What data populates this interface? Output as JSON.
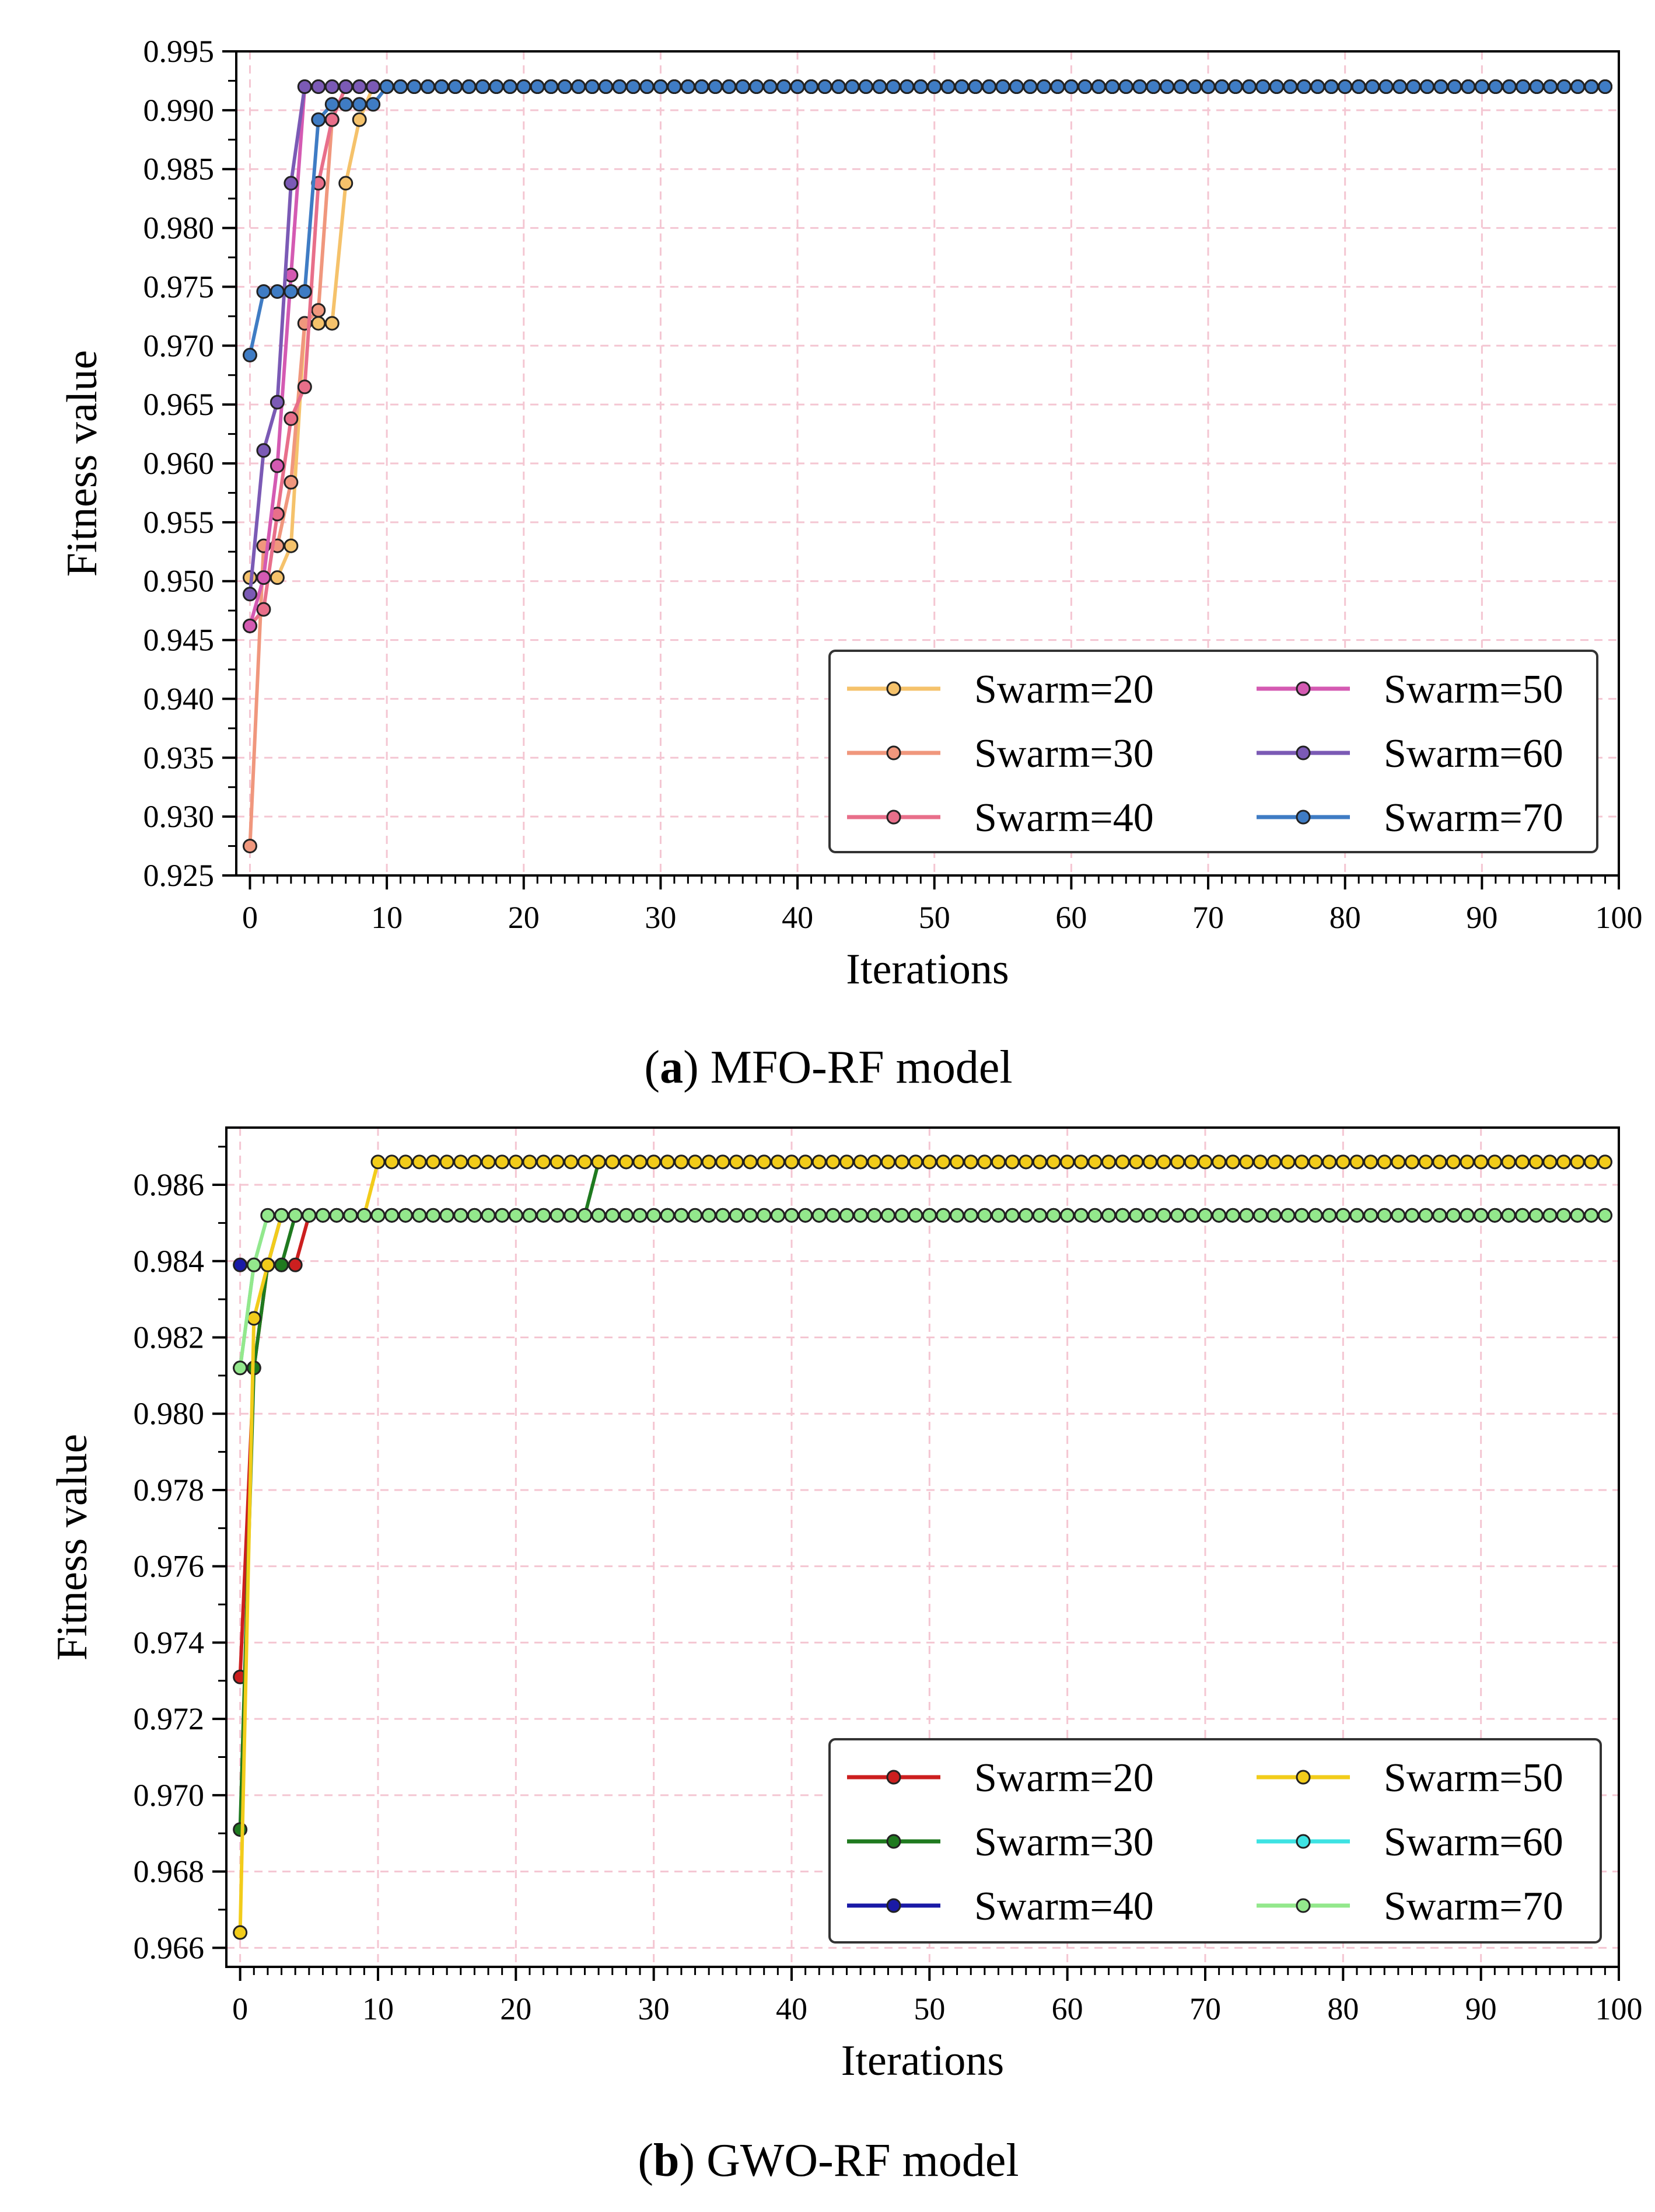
{
  "figure": {
    "captions": [
      {
        "prefix": "(",
        "letter": "a",
        "suffix": ") MFO-RF model"
      },
      {
        "prefix": "(",
        "letter": "b",
        "suffix": ") GWO-RF model"
      }
    ]
  },
  "chart_data": [
    {
      "type": "line",
      "title": "",
      "xlabel": "Iterations",
      "ylabel": "Fitness value",
      "xlim": [
        -1,
        100
      ],
      "ylim": [
        0.925,
        0.995
      ],
      "xticks": [
        0,
        10,
        20,
        30,
        40,
        50,
        60,
        70,
        80,
        90,
        100
      ],
      "yticks": [
        0.925,
        0.93,
        0.935,
        0.94,
        0.945,
        0.95,
        0.955,
        0.96,
        0.965,
        0.97,
        0.975,
        0.98,
        0.985,
        0.99,
        0.995
      ],
      "ytick_format": 3,
      "grid": true,
      "legend": "bottom-right",
      "final_value": 0.992,
      "n_iterations": 100,
      "series": [
        {
          "name": "Swarm=20",
          "color": "#f5c26b",
          "x": [
            0,
            1,
            2,
            3,
            4,
            5,
            6,
            7,
            8,
            9
          ],
          "values": [
            0.9503,
            0.9503,
            0.9503,
            0.953,
            0.9719,
            0.9719,
            0.9719,
            0.9838,
            0.9892,
            0.992
          ]
        },
        {
          "name": "Swarm=30",
          "color": "#f0977d",
          "x": [
            0,
            1,
            2,
            3,
            4,
            5,
            6,
            7
          ],
          "values": [
            0.9275,
            0.953,
            0.953,
            0.9584,
            0.9719,
            0.973,
            0.9892,
            0.992
          ]
        },
        {
          "name": "Swarm=40",
          "color": "#e86f8a",
          "x": [
            0,
            1,
            2,
            3,
            4,
            5,
            6,
            7
          ],
          "values": [
            0.9462,
            0.9476,
            0.9557,
            0.9638,
            0.9665,
            0.9838,
            0.9892,
            0.992
          ]
        },
        {
          "name": "Swarm=50",
          "color": "#d45ab2",
          "x": [
            0,
            1,
            2,
            3,
            4
          ],
          "values": [
            0.9462,
            0.9503,
            0.9598,
            0.976,
            0.992
          ]
        },
        {
          "name": "Swarm=60",
          "color": "#7b5ab5",
          "x": [
            0,
            1,
            2,
            3,
            4
          ],
          "values": [
            0.9489,
            0.9611,
            0.9652,
            0.9838,
            0.992
          ]
        },
        {
          "name": "Swarm=70",
          "color": "#3f7cc4",
          "x": [
            0,
            1,
            2,
            3,
            4,
            5,
            6,
            7,
            8,
            9,
            10
          ],
          "values": [
            0.9692,
            0.9746,
            0.9746,
            0.9746,
            0.9746,
            0.9892,
            0.9905,
            0.9905,
            0.9905,
            0.9905,
            0.992
          ]
        }
      ]
    },
    {
      "type": "line",
      "title": "",
      "xlabel": "Iterations",
      "ylabel": "Fitness value",
      "xlim": [
        -1,
        100
      ],
      "ylim": [
        0.9655,
        0.9875
      ],
      "xticks": [
        0,
        10,
        20,
        30,
        40,
        50,
        60,
        70,
        80,
        90,
        100
      ],
      "yticks": [
        0.966,
        0.968,
        0.97,
        0.972,
        0.974,
        0.976,
        0.978,
        0.98,
        0.982,
        0.984,
        0.986
      ],
      "ytick_format": 3,
      "grid": true,
      "legend": "bottom-right",
      "n_iterations": 100,
      "series": [
        {
          "name": "Swarm=20",
          "color": "#cc1f1f",
          "x": [
            0,
            1,
            2,
            3,
            4,
            5
          ],
          "values": [
            0.9731,
            0.9812,
            0.9839,
            0.9839,
            0.9839,
            0.9852
          ],
          "final_value": 0.9852
        },
        {
          "name": "Swarm=30",
          "color": "#1f7a1f",
          "x": [
            0,
            1,
            2,
            3,
            4,
            25,
            26
          ],
          "values": [
            0.9691,
            0.9812,
            0.9839,
            0.9839,
            0.9852,
            0.9852,
            0.9866
          ],
          "final_value": 0.9866
        },
        {
          "name": "Swarm=40",
          "color": "#1a1aa6",
          "x": [
            0,
            1,
            2,
            3
          ],
          "values": [
            0.9839,
            0.9839,
            0.9839,
            0.9852
          ],
          "final_value": 0.9852
        },
        {
          "name": "Swarm=50",
          "color": "#f2cc1a",
          "x": [
            0,
            1,
            2,
            3,
            9,
            10
          ],
          "values": [
            0.9664,
            0.9825,
            0.9839,
            0.9852,
            0.9852,
            0.9866
          ],
          "final_value": 0.9866
        },
        {
          "name": "Swarm=60",
          "color": "#3de3e3",
          "x": [
            0,
            1,
            2
          ],
          "values": [
            0.9812,
            0.9839,
            0.9852
          ],
          "final_value": 0.9852
        },
        {
          "name": "Swarm=70",
          "color": "#93e88c",
          "x": [
            0,
            1,
            2
          ],
          "values": [
            0.9812,
            0.9839,
            0.9852
          ],
          "final_value": 0.9852
        }
      ]
    }
  ]
}
